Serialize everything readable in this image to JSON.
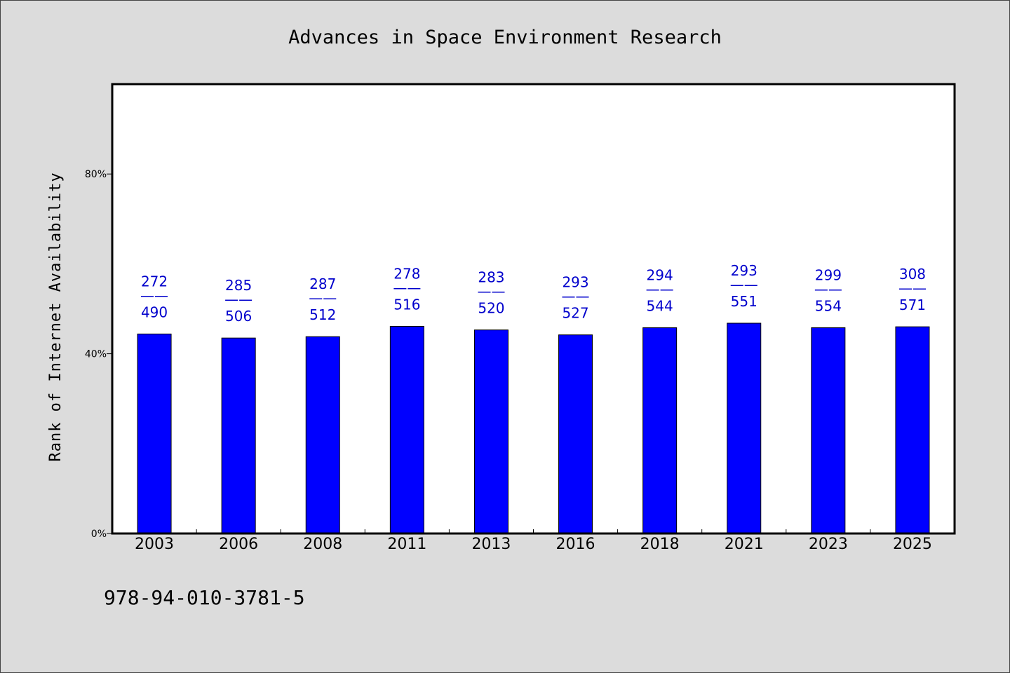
{
  "chart_data": {
    "type": "bar",
    "title": "Advances in Space Environment Research",
    "xlabel": "",
    "ylabel": "Rank of Internet Availability",
    "categories": [
      "2003",
      "2006",
      "2008",
      "2011",
      "2013",
      "2016",
      "2018",
      "2021",
      "2023",
      "2025"
    ],
    "values": [
      44.4,
      43.5,
      43.8,
      46.1,
      45.3,
      44.2,
      45.8,
      46.8,
      45.8,
      46.0
    ],
    "bar_labels_top": [
      "272",
      "285",
      "287",
      "278",
      "283",
      "293",
      "294",
      "293",
      "299",
      "308"
    ],
    "bar_labels_sep": "——",
    "bar_labels_bottom": [
      "490",
      "506",
      "512",
      "516",
      "520",
      "527",
      "544",
      "551",
      "554",
      "571"
    ],
    "ylim": [
      0,
      100
    ],
    "yticks": [
      0,
      40,
      80
    ],
    "ytick_labels": [
      "0%",
      "40%",
      "80%"
    ],
    "grid": false,
    "bar_color": "#0000ff",
    "label_color": "#0000cc",
    "background_color": "#dcdcdc",
    "plot_background": "#ffffff"
  },
  "footer": {
    "isbn": "978-94-010-3781-5"
  }
}
